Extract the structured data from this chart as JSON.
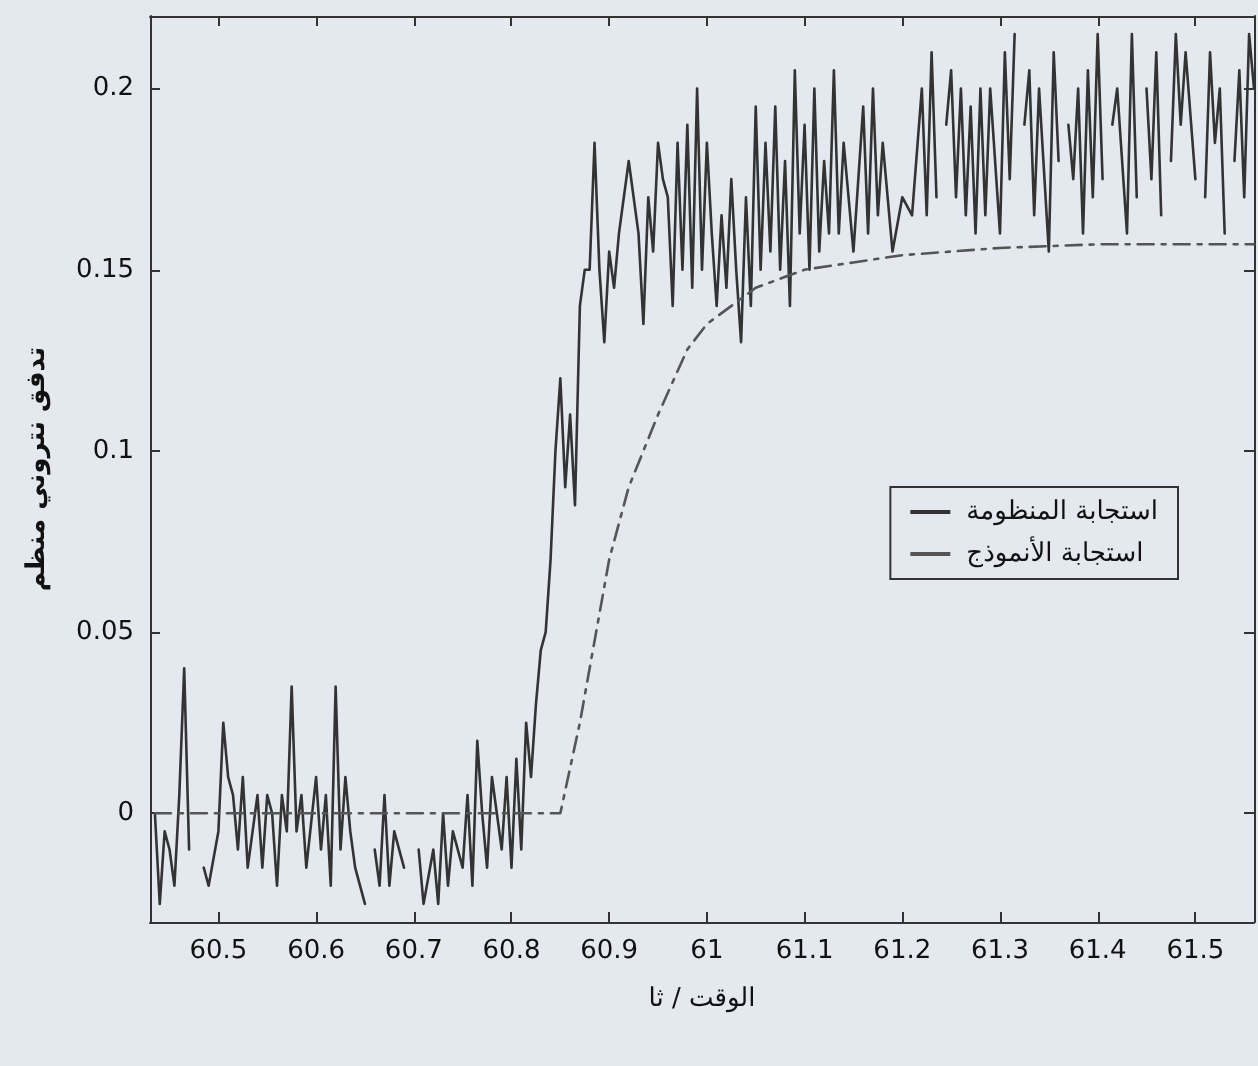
{
  "chart_data": {
    "type": "line",
    "xlabel": "الوقت / ثا",
    "ylabel": "تدفق نتروني منظم",
    "xlim": [
      60.43,
      61.56
    ],
    "ylim": [
      -0.03,
      0.22
    ],
    "xticks": [
      60.5,
      60.6,
      60.7,
      60.8,
      60.9,
      61,
      61.1,
      61.2,
      61.3,
      61.4,
      61.5
    ],
    "yticks": [
      0,
      0.05,
      0.1,
      0.15,
      0.2
    ],
    "grid": false,
    "legend": "right",
    "marker": "none",
    "series": [
      {
        "name": "استجابة المنظومة",
        "color": "#333333",
        "line_style": "solid",
        "x": [
          60.435,
          60.44,
          60.445,
          60.45,
          60.455,
          60.46,
          60.465,
          60.47,
          60.478,
          60.485,
          60.49,
          60.5,
          60.505,
          60.51,
          60.515,
          60.52,
          60.525,
          60.53,
          60.54,
          60.545,
          60.55,
          60.555,
          60.56,
          60.565,
          60.57,
          60.575,
          60.58,
          60.585,
          60.59,
          60.6,
          60.605,
          60.61,
          60.615,
          60.62,
          60.625,
          60.63,
          60.635,
          60.64,
          60.65,
          60.655,
          60.66,
          60.665,
          60.67,
          60.675,
          60.68,
          60.69,
          60.7,
          60.705,
          60.71,
          60.72,
          60.725,
          60.73,
          60.735,
          60.74,
          60.75,
          60.755,
          60.76,
          60.765,
          60.77,
          60.775,
          60.78,
          60.79,
          60.795,
          60.8,
          60.805,
          60.81,
          60.815,
          60.82,
          60.825,
          60.83,
          60.835,
          60.84,
          60.845,
          60.85,
          60.855,
          60.86,
          60.865,
          60.87,
          60.875,
          60.88,
          60.885,
          60.89,
          60.895,
          60.9,
          60.905,
          60.91,
          60.92,
          60.93,
          60.935,
          60.94,
          60.945,
          60.95,
          60.955,
          60.96,
          60.965,
          60.97,
          60.975,
          60.98,
          60.985,
          60.99,
          60.995,
          61.0,
          61.005,
          61.01,
          61.015,
          61.02,
          61.025,
          61.03,
          61.035,
          61.04,
          61.045,
          61.05,
          61.055,
          61.06,
          61.065,
          61.07,
          61.075,
          61.08,
          61.085,
          61.09,
          61.095,
          61.1,
          61.105,
          61.11,
          61.115,
          61.12,
          61.125,
          61.13,
          61.135,
          61.14,
          61.15,
          61.16,
          61.165,
          61.17,
          61.175,
          61.18,
          61.19,
          61.2,
          61.21,
          61.22,
          61.225,
          61.23,
          61.235,
          61.24,
          61.245,
          61.25,
          61.255,
          61.26,
          61.265,
          61.27,
          61.275,
          61.28,
          61.285,
          61.29,
          61.3,
          61.305,
          61.31,
          61.315,
          61.32,
          61.325,
          61.33,
          61.335,
          61.34,
          61.35,
          61.355,
          61.36,
          61.365,
          61.37,
          61.375,
          61.38,
          61.385,
          61.39,
          61.395,
          61.4,
          61.405,
          61.41,
          61.415,
          61.42,
          61.43,
          61.435,
          61.44,
          61.445,
          61.45,
          61.455,
          61.46,
          61.465,
          61.47,
          61.475,
          61.48,
          61.485,
          61.49,
          61.5,
          61.505,
          61.51,
          61.515,
          61.52,
          61.525,
          61.53,
          61.535,
          61.54,
          61.545,
          61.55,
          61.555,
          61.56
        ],
        "values": [
          0,
          -0.025,
          -0.005,
          -0.01,
          -0.02,
          0.005,
          0.04,
          -0.01,
          null,
          -0.015,
          -0.02,
          -0.005,
          0.025,
          0.01,
          0.005,
          -0.01,
          0.01,
          -0.015,
          0.005,
          -0.015,
          0.005,
          0,
          -0.02,
          0.005,
          -0.005,
          0.035,
          -0.005,
          0.005,
          -0.015,
          0.01,
          -0.01,
          0.005,
          -0.02,
          0.035,
          -0.01,
          0.01,
          -0.005,
          -0.015,
          -0.025,
          null,
          -0.01,
          -0.02,
          0.005,
          -0.02,
          -0.005,
          -0.015,
          null,
          -0.01,
          -0.025,
          -0.01,
          -0.025,
          0,
          -0.02,
          -0.005,
          -0.015,
          0.005,
          -0.02,
          0.02,
          0,
          -0.015,
          0.01,
          -0.01,
          0.01,
          -0.015,
          0.015,
          -0.01,
          0.025,
          0.01,
          0.03,
          0.045,
          0.05,
          0.07,
          0.1,
          0.12,
          0.09,
          0.11,
          0.085,
          0.14,
          0.15,
          0.15,
          0.185,
          0.15,
          0.13,
          0.155,
          0.145,
          0.16,
          0.18,
          0.16,
          0.135,
          0.17,
          0.155,
          0.185,
          0.175,
          0.17,
          0.14,
          0.185,
          0.15,
          0.19,
          0.145,
          0.2,
          0.15,
          0.185,
          0.16,
          0.14,
          0.165,
          0.145,
          0.175,
          0.15,
          0.13,
          0.17,
          0.14,
          0.195,
          0.15,
          0.185,
          0.155,
          0.195,
          0.15,
          0.18,
          0.14,
          0.205,
          0.16,
          0.19,
          0.15,
          0.2,
          0.155,
          0.18,
          0.16,
          0.205,
          0.16,
          0.185,
          0.155,
          0.195,
          0.16,
          0.2,
          0.165,
          0.185,
          0.155,
          0.17,
          0.165,
          0.2,
          0.165,
          0.21,
          0.17,
          null,
          0.19,
          0.205,
          0.17,
          0.2,
          0.165,
          0.195,
          0.16,
          0.2,
          0.165,
          0.2,
          0.16,
          0.21,
          0.175,
          0.215,
          null,
          0.19,
          0.205,
          0.165,
          0.2,
          0.155,
          0.21,
          0.18,
          null,
          0.19,
          0.175,
          0.2,
          0.16,
          0.205,
          0.17,
          0.215,
          0.175,
          null,
          0.19,
          0.2,
          0.16,
          0.215,
          0.17,
          null,
          0.2,
          0.175,
          0.21,
          0.165,
          null,
          0.18,
          0.215,
          0.19,
          0.21,
          0.175,
          null,
          0.17,
          0.21,
          0.185,
          0.2,
          0.16,
          null,
          0.18,
          0.205,
          0.17,
          0.215,
          0.2
        ]
      },
      {
        "name": "استجابة الأنموذج",
        "color": "#555555",
        "line_style": "dashed",
        "x": [
          60.435,
          60.85,
          60.87,
          60.88,
          60.9,
          60.92,
          60.95,
          60.98,
          61.0,
          61.05,
          61.1,
          61.15,
          61.2,
          61.3,
          61.4,
          61.56
        ],
        "values": [
          0,
          0,
          0.025,
          0.04,
          0.07,
          0.09,
          0.11,
          0.128,
          0.135,
          0.145,
          0.15,
          0.152,
          0.154,
          0.156,
          0.157,
          0.157
        ]
      }
    ]
  }
}
